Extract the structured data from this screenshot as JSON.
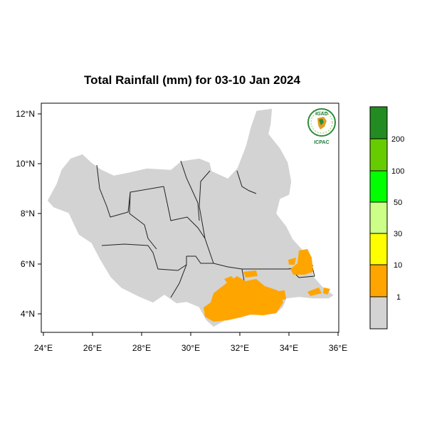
{
  "title": "Total Rainfall (mm) for 03-10 Jan 2024",
  "x_ticks": [
    "24°E",
    "26°E",
    "28°E",
    "30°E",
    "32°E",
    "34°E",
    "36°E"
  ],
  "y_ticks": [
    "12°N",
    "10°N",
    "8°N",
    "6°N",
    "4°N"
  ],
  "logo": {
    "top_text": "IGAD",
    "bottom_text": "ICPAC"
  },
  "legend": {
    "bins": [
      {
        "color": "#d3d3d3"
      },
      {
        "color": "#ffa500"
      },
      {
        "color": "#ffff00"
      },
      {
        "color": "#ccff88"
      },
      {
        "color": "#00ff00"
      },
      {
        "color": "#66cc00"
      },
      {
        "color": "#228b22"
      }
    ],
    "labels": [
      "1",
      "10",
      "30",
      "50",
      "100",
      "200"
    ]
  },
  "colors": {
    "land": "#d3d3d3",
    "rain_1_10": "#ffa500",
    "boundary": "#222222"
  }
}
